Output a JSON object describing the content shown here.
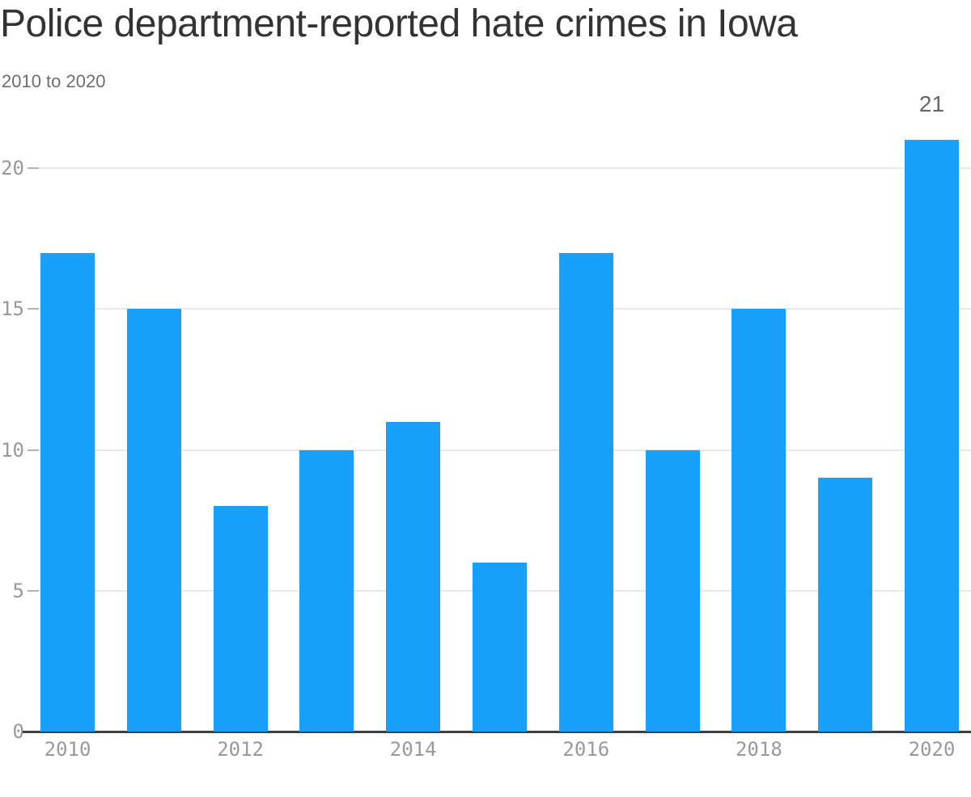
{
  "header": {
    "title": "Police department-reported hate crimes in Iowa",
    "subtitle": "2010 to 2020"
  },
  "chart_data": {
    "type": "bar",
    "title": "Police department-reported hate crimes in Iowa",
    "subtitle": "2010 to 2020",
    "categories": [
      "2010",
      "2011",
      "2012",
      "2013",
      "2014",
      "2015",
      "2016",
      "2017",
      "2018",
      "2019",
      "2020"
    ],
    "values": [
      17,
      15,
      8,
      10,
      11,
      6,
      17,
      10,
      15,
      9,
      21
    ],
    "xlabel": "",
    "ylabel": "",
    "ylim": [
      0,
      22
    ],
    "yticks": [
      0,
      5,
      10,
      15,
      20
    ],
    "xtick_labels": [
      "2010",
      "2012",
      "2014",
      "2016",
      "2018",
      "2020"
    ],
    "grid": "horizontal",
    "legend": "none",
    "annotations": [
      {
        "category": "2020",
        "text": "21"
      }
    ],
    "colors": {
      "bar": "#18a0fb",
      "gridline": "#e9e9e9",
      "tick_dash": "#b3b3b3",
      "axis_line": "#404040",
      "tick_label": "#999999",
      "title": "#333333",
      "subtitle": "#6e6e6e",
      "annotation": "#666666",
      "background": "#ffffff"
    }
  }
}
